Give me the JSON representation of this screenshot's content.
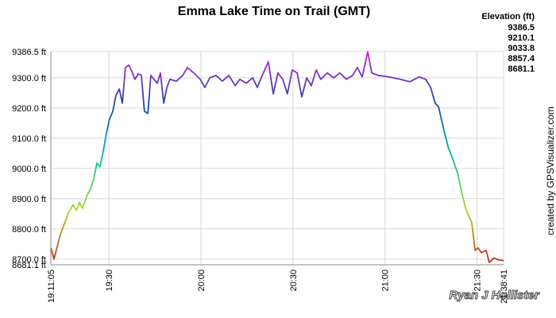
{
  "chart_data": {
    "type": "line",
    "title": "Emma Lake Time on Trail (GMT)",
    "credit": "created by GPSVisualizer.com",
    "watermark": "Ryan J Hollister",
    "color_legend": {
      "title": "Elevation (ft)",
      "entries": [
        {
          "value": 9386.5,
          "color": "#cc22cc"
        },
        {
          "value": 9210.1,
          "color": "#1a4aa8"
        },
        {
          "value": 9033.8,
          "color": "#00c0a0"
        },
        {
          "value": 8857.4,
          "color": "#b0d820"
        },
        {
          "value": 8681.1,
          "color": "#c02020"
        }
      ]
    },
    "grid": true,
    "xlim": [
      1151.083,
      1298.683
    ],
    "xticks": [
      {
        "value": 1151.083,
        "label": "19:11:05"
      },
      {
        "value": 1170,
        "label": "19:30"
      },
      {
        "value": 1200,
        "label": "20:00"
      },
      {
        "value": 1230,
        "label": "20:30"
      },
      {
        "value": 1260,
        "label": "21:00"
      },
      {
        "value": 1290,
        "label": "21:30"
      },
      {
        "value": 1298.683,
        "label": "21:38:41"
      }
    ],
    "ylim": [
      8681.1,
      9386.5
    ],
    "yticks": [
      {
        "value": 8681.1,
        "label": "8681.1 ft"
      },
      {
        "value": 8700,
        "label": "8700.0 ft"
      },
      {
        "value": 8800,
        "label": "8800.0 ft"
      },
      {
        "value": 8900,
        "label": "8900.0 ft"
      },
      {
        "value": 9000,
        "label": "9000.0 ft"
      },
      {
        "value": 9100,
        "label": "9100.0 ft"
      },
      {
        "value": 9200,
        "label": "9200.0 ft"
      },
      {
        "value": 9300,
        "label": "9300.0 ft"
      },
      {
        "value": 9386.5,
        "label": "9386.5 ft"
      }
    ],
    "x": [
      1151.1,
      1152.1,
      1153.2,
      1154.2,
      1155.2,
      1156.8,
      1158.3,
      1159.4,
      1160.4,
      1161.4,
      1163.0,
      1164.0,
      1165.1,
      1166.1,
      1167.1,
      1168.2,
      1169.2,
      1170.2,
      1171.3,
      1172.3,
      1173.4,
      1174.4,
      1175.4,
      1176.5,
      1177.5,
      1178.5,
      1179.6,
      1180.6,
      1181.6,
      1182.7,
      1183.7,
      1184.7,
      1185.8,
      1186.8,
      1187.9,
      1188.9,
      1189.9,
      1192.0,
      1194.1,
      1195.6,
      1197.7,
      1199.8,
      1201.3,
      1202.9,
      1204.9,
      1207.0,
      1209.1,
      1211.2,
      1212.7,
      1214.8,
      1216.9,
      1218.4,
      1220.0,
      1222.0,
      1223.6,
      1225.1,
      1226.7,
      1228.2,
      1229.8,
      1231.4,
      1232.9,
      1234.5,
      1236.0,
      1237.6,
      1239.1,
      1241.2,
      1243.3,
      1245.3,
      1247.4,
      1249.5,
      1251.0,
      1252.6,
      1254.4,
      1255.7,
      1257.8,
      1261.4,
      1265.0,
      1268.1,
      1271.2,
      1273.3,
      1274.9,
      1276.4,
      1277.5,
      1279.0,
      1280.6,
      1282.1,
      1283.7,
      1285.2,
      1286.3,
      1287.3,
      1288.3,
      1289.4,
      1290.4,
      1291.4,
      1293.0,
      1294.0,
      1295.6,
      1297.1,
      1298.7
    ],
    "series": [
      {
        "name": "Elevation",
        "values": [
          8737,
          8700,
          8742,
          8782,
          8808,
          8853,
          8879,
          8861,
          8887,
          8868,
          8913,
          8932,
          8966,
          9018,
          9005,
          9058,
          9116,
          9163,
          9189,
          9242,
          9263,
          9216,
          9334,
          9342,
          9321,
          9295,
          9313,
          9308,
          9189,
          9182,
          9308,
          9295,
          9282,
          9316,
          9216,
          9268,
          9295,
          9289,
          9308,
          9334,
          9316,
          9295,
          9268,
          9300,
          9308,
          9289,
          9308,
          9274,
          9295,
          9282,
          9300,
          9268,
          9308,
          9353,
          9247,
          9316,
          9295,
          9247,
          9326,
          9316,
          9237,
          9300,
          9274,
          9326,
          9295,
          9316,
          9300,
          9316,
          9295,
          9308,
          9334,
          9303,
          9386.5,
          9316,
          9308,
          9303,
          9295,
          9287,
          9303,
          9295,
          9268,
          9216,
          9203,
          9137,
          9071,
          9032,
          8984,
          8913,
          8868,
          8842,
          8821,
          8729,
          8737,
          8721,
          8729,
          8689,
          8703,
          8697,
          8695
        ]
      }
    ]
  }
}
